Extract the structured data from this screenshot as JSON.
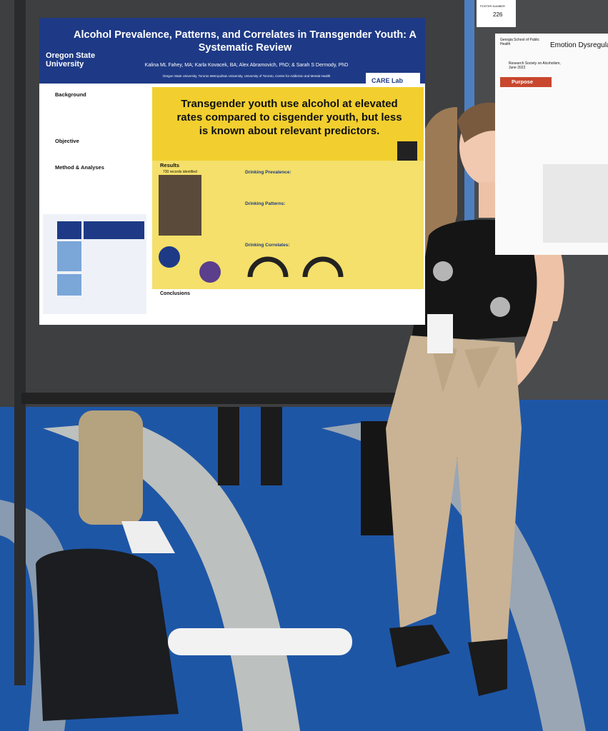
{
  "poster": {
    "title": "Alcohol Prevalence, Patterns, and Correlates in Transgender Youth: A Systematic Review",
    "authors": "Kalina ML Fahey, MA; Karla Kovacek, BA; Alex Abramovich, PhD; & Sarah S Dermody, PhD",
    "affiliations": "Oregon State University, Toronto Metropolitan University, University of Toronto, Centre for Addiction and Mental Health",
    "logo": "Oregon State University",
    "lab": "CARE Lab",
    "headline": "Transgender youth use alcohol at elevated rates compared to cisgender youth, but less is known about relevant predictors.",
    "left_sections": [
      "Background",
      "Objective",
      "Method & Analyses"
    ],
    "results": "Results",
    "records": "730 records identified",
    "right_sections": [
      "Drinking Prevalence:",
      "Drinking Patterns:",
      "Drinking Correlates:"
    ],
    "conclusions": "Conclusions"
  },
  "poster_number": {
    "label": "POSTER NUMBER",
    "value": "226"
  },
  "neighbor_poster": {
    "school": "Georgia School of Public Health",
    "title": "Emotion Dysregulat... Among Sexua",
    "society": "Research Society on Alcoholism, June 2022",
    "section": "Purpose"
  }
}
